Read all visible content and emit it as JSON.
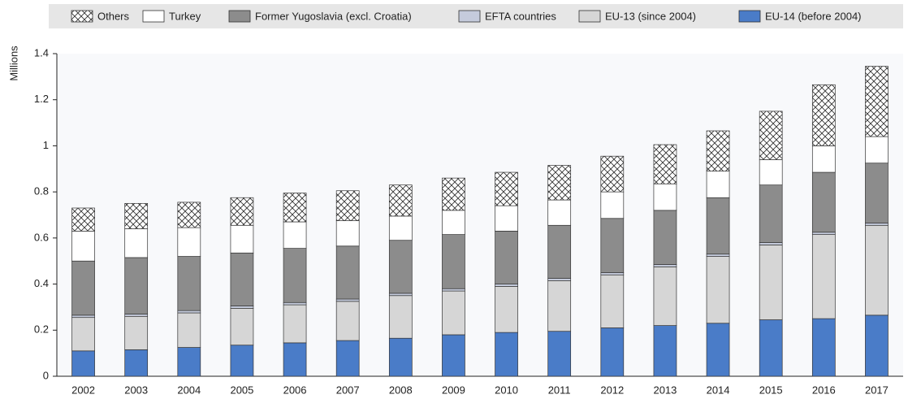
{
  "chart_data": {
    "type": "stacked-bar",
    "y_label": "Millions",
    "categories": [
      "2002",
      "2003",
      "2004",
      "2005",
      "2006",
      "2007",
      "2008",
      "2009",
      "2010",
      "2011",
      "2012",
      "2013",
      "2014",
      "2015",
      "2016",
      "2017"
    ],
    "series": [
      {
        "name": "Others",
        "color": "#ffffff",
        "hatch": "crosshatch",
        "values": [
          0.1,
          0.11,
          0.11,
          0.12,
          0.125,
          0.13,
          0.135,
          0.14,
          0.145,
          0.15,
          0.155,
          0.17,
          0.175,
          0.21,
          0.265,
          0.305
        ]
      },
      {
        "name": "Turkey",
        "color": "#ffffff",
        "values": [
          0.13,
          0.125,
          0.125,
          0.12,
          0.115,
          0.11,
          0.105,
          0.105,
          0.11,
          0.11,
          0.115,
          0.115,
          0.115,
          0.11,
          0.115,
          0.115
        ]
      },
      {
        "name": "Former Yugoslavia (excl. Croatia)",
        "color": "#8c8c8c",
        "values": [
          0.235,
          0.245,
          0.235,
          0.23,
          0.235,
          0.23,
          0.23,
          0.235,
          0.23,
          0.23,
          0.235,
          0.235,
          0.245,
          0.25,
          0.26,
          0.26
        ]
      },
      {
        "name": "EFTA countries",
        "color": "#c5cbdc",
        "values": [
          0.01,
          0.01,
          0.01,
          0.01,
          0.01,
          0.01,
          0.01,
          0.01,
          0.01,
          0.01,
          0.01,
          0.01,
          0.01,
          0.01,
          0.01,
          0.01
        ]
      },
      {
        "name": "EU-13 (since 2004)",
        "color": "#d6d6d6",
        "values": [
          0.145,
          0.145,
          0.15,
          0.16,
          0.165,
          0.17,
          0.185,
          0.19,
          0.2,
          0.22,
          0.23,
          0.255,
          0.29,
          0.325,
          0.365,
          0.39
        ]
      },
      {
        "name": "EU-14 (before 2004)",
        "color": "#4a7cc8",
        "values": [
          0.11,
          0.115,
          0.125,
          0.135,
          0.145,
          0.155,
          0.165,
          0.18,
          0.19,
          0.195,
          0.21,
          0.22,
          0.23,
          0.245,
          0.25,
          0.265
        ]
      }
    ],
    "ylim": [
      0,
      1.4
    ],
    "yticks": [
      0,
      0.2,
      0.4,
      0.6,
      0.8,
      1,
      1.2,
      1.4
    ],
    "grid": false
  }
}
